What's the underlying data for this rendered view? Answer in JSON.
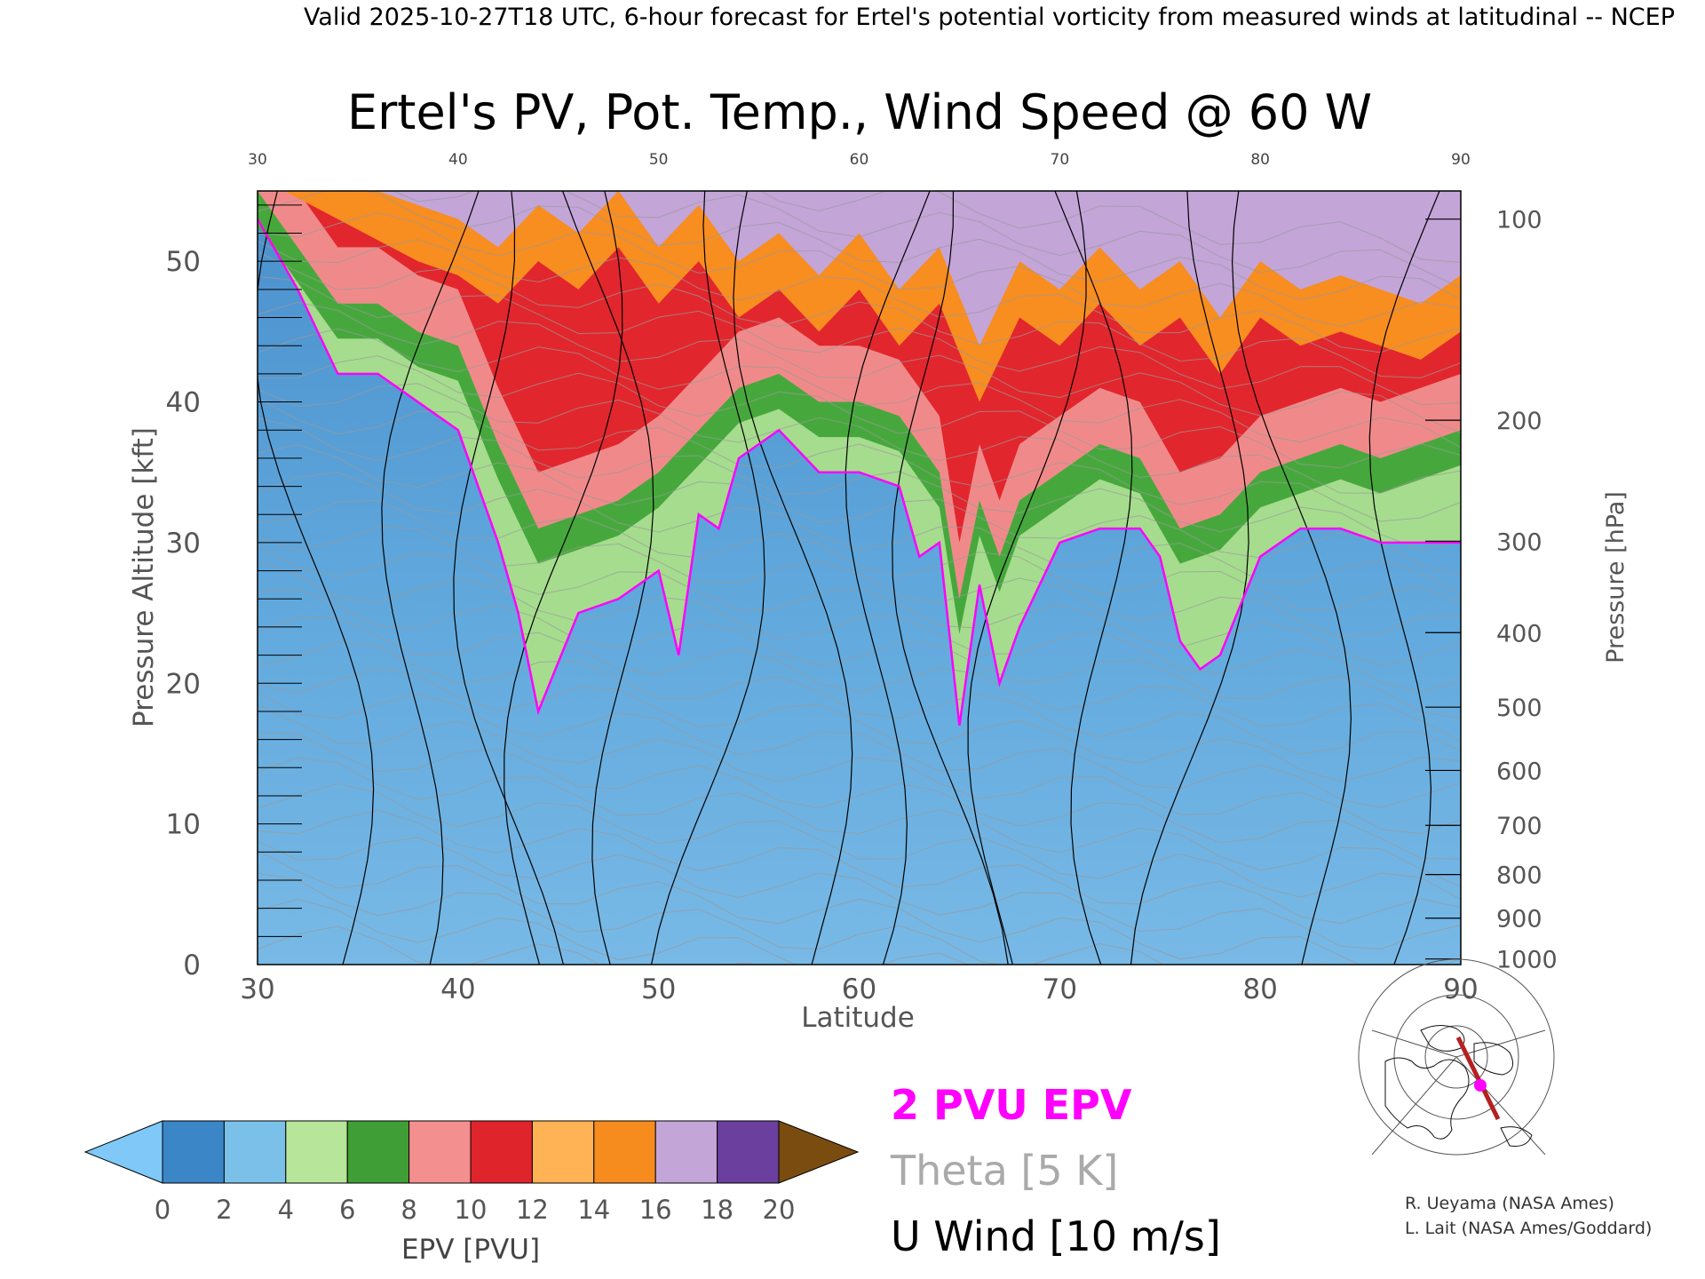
{
  "header": {
    "valid_line": "Valid 2025-10-27T18 UTC, 6-hour forecast for Ertel's potential vorticity from measured winds at latitudinal -- NCEP"
  },
  "chart_data": {
    "type": "heatmap",
    "title": "Ertel's PV, Pot. Temp., Wind Speed @ 60 W",
    "xlabel": "Latitude",
    "ylabel": "Pressure Altitude [kft]",
    "y2label": "Pressure [hPa]",
    "xlim": [
      30,
      90
    ],
    "ylim": [
      0,
      55
    ],
    "x_ticks": [
      "30",
      "40",
      "50",
      "60",
      "70",
      "80",
      "90"
    ],
    "y_ticks": [
      "0",
      "10",
      "20",
      "30",
      "40",
      "50"
    ],
    "pressure_ticks": [
      {
        "label": "100",
        "kft": 53.0
      },
      {
        "label": "200",
        "kft": 38.7
      },
      {
        "label": "300",
        "kft": 30.1
      },
      {
        "label": "400",
        "kft": 23.6
      },
      {
        "label": "500",
        "kft": 18.3
      },
      {
        "label": "600",
        "kft": 13.8
      },
      {
        "label": "700",
        "kft": 9.9
      },
      {
        "label": "800",
        "kft": 6.4
      },
      {
        "label": "900",
        "kft": 3.3
      },
      {
        "label": "1000",
        "kft": 0.4
      }
    ],
    "dynamic_tropopause_2pvu_kft": [
      [
        30,
        53
      ],
      [
        32,
        48
      ],
      [
        34,
        42
      ],
      [
        36,
        42
      ],
      [
        38,
        40
      ],
      [
        40,
        38
      ],
      [
        42,
        30
      ],
      [
        43,
        25
      ],
      [
        44,
        18
      ],
      [
        46,
        25
      ],
      [
        48,
        26
      ],
      [
        50,
        28
      ],
      [
        51,
        22
      ],
      [
        52,
        32
      ],
      [
        53,
        31
      ],
      [
        54,
        36
      ],
      [
        56,
        38
      ],
      [
        58,
        35
      ],
      [
        60,
        35
      ],
      [
        62,
        34
      ],
      [
        63,
        29
      ],
      [
        64,
        30
      ],
      [
        65,
        17
      ],
      [
        66,
        27
      ],
      [
        67,
        20
      ],
      [
        68,
        24
      ],
      [
        69,
        27
      ],
      [
        70,
        30
      ],
      [
        72,
        31
      ],
      [
        74,
        31
      ],
      [
        75,
        29
      ],
      [
        76,
        23
      ],
      [
        77,
        21
      ],
      [
        78,
        22
      ],
      [
        80,
        29
      ],
      [
        82,
        31
      ],
      [
        84,
        31
      ],
      [
        86,
        30
      ],
      [
        88,
        30
      ],
      [
        90,
        30
      ]
    ],
    "epv_bands_pvu": [
      {
        "band": "stratosphere_2_6",
        "top_kft": [
          [
            30,
            55
          ],
          [
            32,
            51
          ],
          [
            34,
            47
          ],
          [
            36,
            47
          ],
          [
            38,
            45
          ],
          [
            40,
            44
          ],
          [
            42,
            37
          ],
          [
            44,
            31
          ],
          [
            46,
            32
          ],
          [
            48,
            33
          ],
          [
            50,
            35
          ],
          [
            52,
            38
          ],
          [
            54,
            41
          ],
          [
            56,
            42
          ],
          [
            58,
            40
          ],
          [
            60,
            40
          ],
          [
            62,
            39
          ],
          [
            64,
            35
          ],
          [
            65,
            26
          ],
          [
            66,
            33
          ],
          [
            67,
            29
          ],
          [
            68,
            33
          ],
          [
            70,
            35
          ],
          [
            72,
            37
          ],
          [
            74,
            36
          ],
          [
            76,
            31
          ],
          [
            78,
            32
          ],
          [
            80,
            35
          ],
          [
            82,
            36
          ],
          [
            84,
            37
          ],
          [
            86,
            36
          ],
          [
            88,
            37
          ],
          [
            90,
            38
          ]
        ]
      },
      {
        "band": "stratosphere_6_12",
        "top_kft": [
          [
            30,
            56
          ],
          [
            34,
            53
          ],
          [
            38,
            50
          ],
          [
            40,
            49
          ],
          [
            42,
            47
          ],
          [
            44,
            50
          ],
          [
            46,
            48
          ],
          [
            48,
            51
          ],
          [
            50,
            47
          ],
          [
            52,
            50
          ],
          [
            54,
            46
          ],
          [
            56,
            48
          ],
          [
            58,
            45
          ],
          [
            60,
            48
          ],
          [
            62,
            44
          ],
          [
            64,
            47
          ],
          [
            66,
            40
          ],
          [
            68,
            46
          ],
          [
            70,
            44
          ],
          [
            72,
            47
          ],
          [
            74,
            44
          ],
          [
            76,
            46
          ],
          [
            78,
            42
          ],
          [
            80,
            46
          ],
          [
            82,
            44
          ],
          [
            84,
            45
          ],
          [
            86,
            44
          ],
          [
            88,
            43
          ],
          [
            90,
            45
          ]
        ]
      }
    ],
    "colorbar": {
      "label": "EPV [PVU]",
      "ticks": [
        "0",
        "2",
        "4",
        "6",
        "8",
        "10",
        "12",
        "14",
        "16",
        "18",
        "20"
      ],
      "colors": [
        "#3a86c6",
        "#7ac0e8",
        "#b7e59a",
        "#3f9e36",
        "#f48f8f",
        "#e0242c",
        "#ffb354",
        "#f78c1e",
        "#c3a5d8",
        "#6a3f9e",
        "#f6f096"
      ],
      "under_color": "#7fc8f8",
      "over_color": "#7b4c10"
    },
    "legend": {
      "pvu_label": "2 PVU EPV",
      "theta_label": "Theta [5 K]",
      "wind_label": "U Wind [10 m/s]"
    },
    "colors": {
      "tropopause": "#ff00ff",
      "theta": "#9a9a9a",
      "wind": "#000000",
      "troposphere": "#5a9fd6"
    }
  },
  "inset_map": {
    "description_icon": "polar-stereographic-map",
    "cross_section_color": "#b52020",
    "marker_color": "#ff00ff"
  },
  "credits": {
    "line1": "R. Ueyama (NASA Ames)",
    "line2": "L. Lait (NASA Ames/Goddard)"
  }
}
